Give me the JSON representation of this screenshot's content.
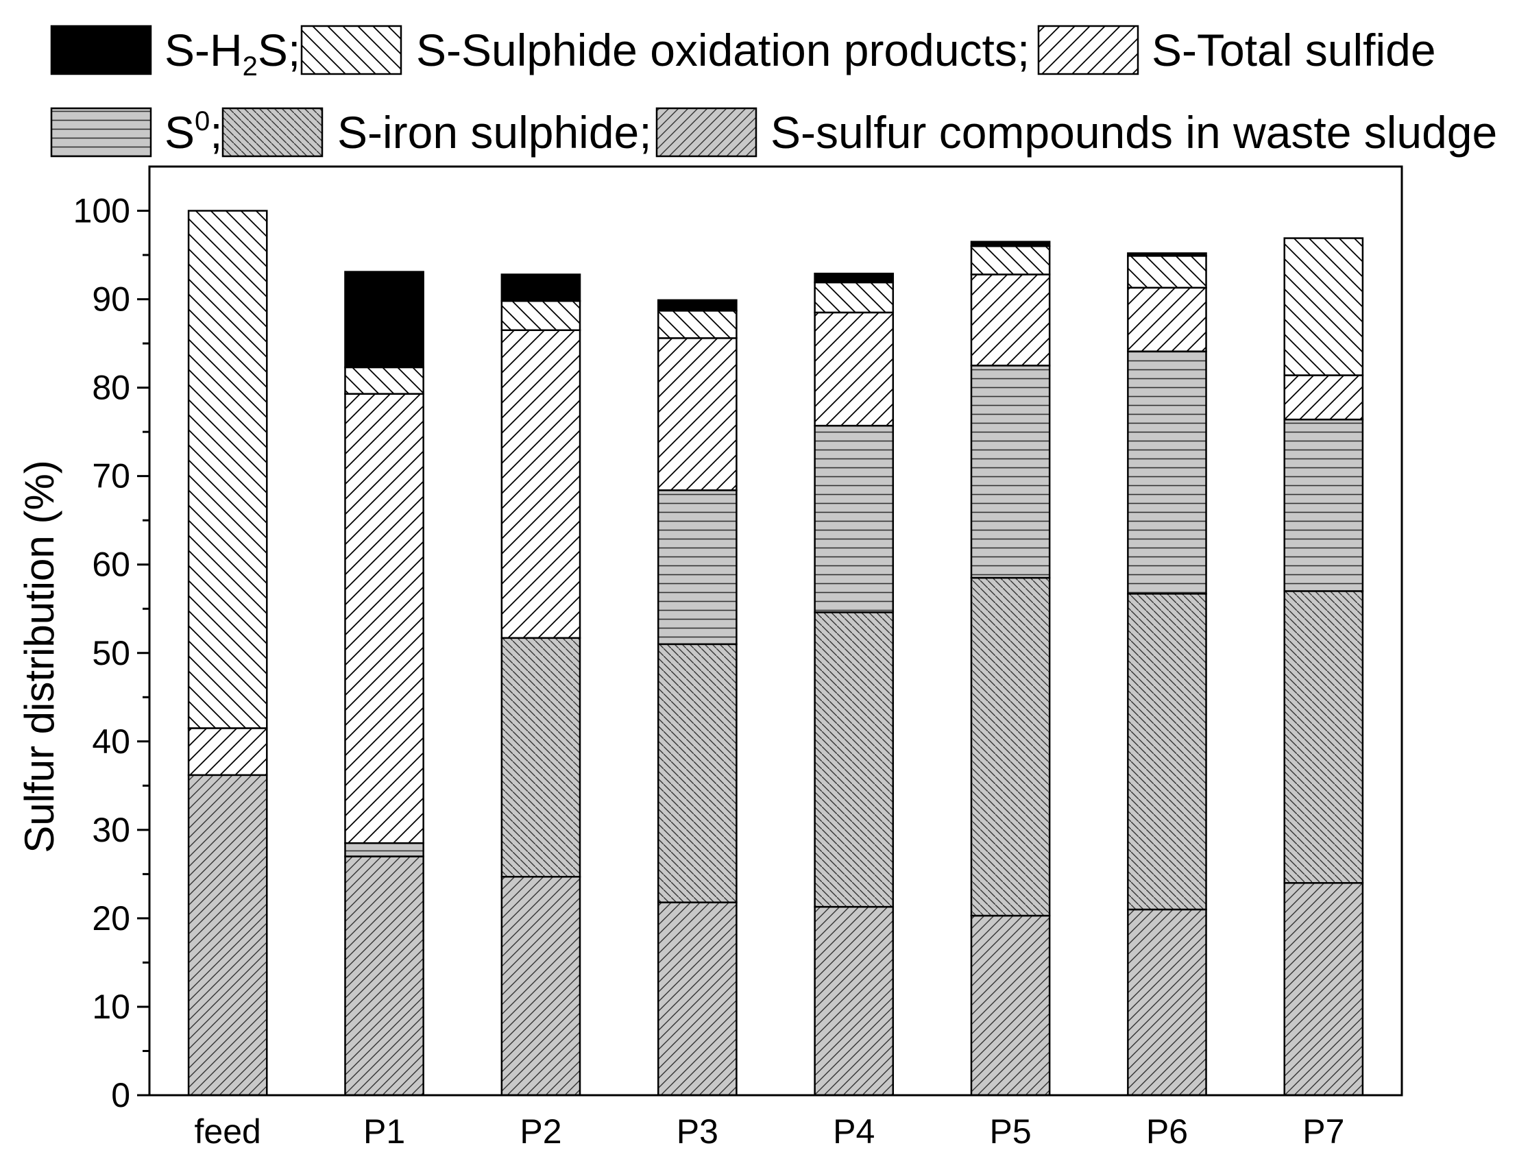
{
  "chart_data": {
    "type": "bar",
    "stacked": true,
    "categories": [
      "feed",
      "P1",
      "P2",
      "P3",
      "P4",
      "P5",
      "P6",
      "P7"
    ],
    "ylabel": "Sulfur distribution (%)",
    "xlabel": "",
    "ylim": [
      0,
      105
    ],
    "yticks": [
      0,
      10,
      20,
      30,
      40,
      50,
      60,
      70,
      80,
      90,
      100
    ],
    "legend_position": "top",
    "series": [
      {
        "key": "sludge",
        "name": "S-sulfur compounds in waste sludge",
        "fill": "#c8c8c8",
        "hatch": "diag-dense",
        "values": [
          36.2,
          27.0,
          24.7,
          21.8,
          21.3,
          20.3,
          21.0,
          24.0
        ]
      },
      {
        "key": "iron",
        "name": "S-iron sulphide;",
        "fill": "#c8c8c8",
        "hatch": "back-dense",
        "values": [
          0,
          0,
          27.0,
          29.2,
          33.3,
          38.2,
          35.7,
          33.0
        ]
      },
      {
        "key": "s0",
        "name": "S",
        "name_sup": "0",
        "name_suffix": ";",
        "fill": "#c8c8c8",
        "hatch": "horizontal",
        "values": [
          0,
          1.5,
          0,
          17.4,
          21.1,
          24.0,
          27.4,
          19.4
        ]
      },
      {
        "key": "total",
        "name": "S-Total sulfide",
        "fill": "#ffffff",
        "hatch": "diag",
        "values": [
          5.3,
          50.8,
          34.8,
          17.2,
          12.8,
          10.3,
          7.2,
          5.0
        ]
      },
      {
        "key": "oxid",
        "name": "S-Sulphide oxidation products;",
        "fill": "#ffffff",
        "hatch": "back",
        "values": [
          58.5,
          3.0,
          3.3,
          3.1,
          3.4,
          3.2,
          3.6,
          15.5
        ]
      },
      {
        "key": "h2s",
        "name": "S-H",
        "name_sub": "2",
        "name_suffix": "S;",
        "fill": "#000000",
        "hatch": "none",
        "values": [
          0,
          10.8,
          3.0,
          1.2,
          1.0,
          0.5,
          0.3,
          0
        ]
      }
    ]
  }
}
